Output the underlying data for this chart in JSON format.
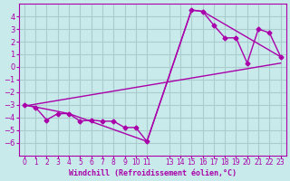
{
  "background_color": "#c8eaea",
  "grid_color": "#aacccc",
  "line_color": "#aa00aa",
  "marker_color": "#aa00aa",
  "xlabel": "Windchill (Refroidissement éolien,°C)",
  "xlabel_color": "#aa00aa",
  "tick_color": "#aa00aa",
  "ylim": [
    -7,
    5
  ],
  "xlim": [
    -0.5,
    23.5
  ],
  "yticks": [
    -6,
    -5,
    -4,
    -3,
    -2,
    -1,
    0,
    1,
    2,
    3,
    4
  ],
  "xtick_positions": [
    0,
    1,
    2,
    3,
    4,
    5,
    6,
    7,
    8,
    9,
    10,
    11,
    13,
    14,
    15,
    16,
    17,
    18,
    19,
    20,
    21,
    22,
    23
  ],
  "xtick_labels": [
    "0",
    "1",
    "2",
    "3",
    "4",
    "5",
    "6",
    "7",
    "8",
    "9",
    "10",
    "11",
    "13",
    "14",
    "15",
    "16",
    "17",
    "18",
    "19",
    "20",
    "21",
    "22",
    "23"
  ],
  "series1_x": [
    0,
    1,
    2,
    3,
    4,
    5,
    6,
    7,
    8,
    9,
    10,
    11,
    15,
    16,
    17,
    18,
    19,
    20,
    21,
    22,
    23
  ],
  "series1_y": [
    -3.0,
    -3.2,
    -4.2,
    -3.7,
    -3.7,
    -4.3,
    -4.2,
    -4.3,
    -4.3,
    -4.8,
    -4.8,
    -5.9,
    4.5,
    4.4,
    3.3,
    2.3,
    2.3,
    0.3,
    3.0,
    2.7,
    0.8
  ],
  "series2_x": [
    0,
    4,
    11,
    15,
    16,
    23
  ],
  "series2_y": [
    -3.0,
    -3.7,
    -5.9,
    4.5,
    4.4,
    0.8
  ],
  "series3_x": [
    0,
    23
  ],
  "series3_y": [
    -3.1,
    0.3
  ]
}
